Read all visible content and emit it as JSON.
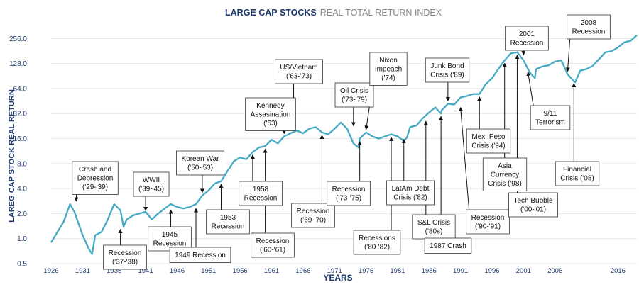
{
  "chart_data": {
    "type": "line",
    "title": "LARGE CAP STOCKS",
    "subtitle": "REAL TOTAL RETURN INDEX",
    "xlabel": "YEARS",
    "ylabel": "LAREG CAP STOCK REAL RETURN",
    "y_scale": "log2",
    "ylim": [
      0.5,
      360
    ],
    "xlim": [
      1926,
      2019
    ],
    "grid": true,
    "y_ticks": [
      "0.5",
      "1.0",
      "2.0",
      "4.0",
      "8.0",
      "16.0",
      "32.0",
      "64.0",
      "128.0",
      "256.0"
    ],
    "y_tick_values": [
      0.5,
      1,
      2,
      4,
      8,
      16,
      32,
      64,
      128,
      256
    ],
    "x_ticks": [
      "1926",
      "1931",
      "1936",
      "1941",
      "1946",
      "1951",
      "1956",
      "1961",
      "1966",
      "1971",
      "1976",
      "1981",
      "1986",
      "1991",
      "1996",
      "2001",
      "2006",
      "2016"
    ],
    "x_tick_values": [
      1926,
      1931,
      1936,
      1941,
      1946,
      1951,
      1956,
      1961,
      1966,
      1971,
      1976,
      1981,
      1986,
      1991,
      1996,
      2001,
      2006,
      2016
    ],
    "series": [
      {
        "color": "#45a9c4",
        "x": [
          1926,
          1927,
          1928,
          1929,
          1929.7,
          1930,
          1931,
          1932,
          1932.5,
          1933,
          1934,
          1935,
          1936,
          1937,
          1937.5,
          1938,
          1939,
          1940,
          1941,
          1942,
          1943,
          1944,
          1945,
          1946,
          1947,
          1948,
          1949,
          1950,
          1951,
          1952,
          1953,
          1954,
          1955,
          1956,
          1957,
          1958,
          1959,
          1960,
          1961,
          1962,
          1963,
          1964,
          1965,
          1966,
          1967,
          1968,
          1969,
          1970,
          1971,
          1972,
          1973,
          1974,
          1974.8,
          1975,
          1976,
          1977,
          1978,
          1979,
          1980,
          1981,
          1982,
          1982.5,
          1983,
          1984,
          1985,
          1986,
          1987,
          1987.9,
          1988,
          1989,
          1990,
          1991,
          1992,
          1993,
          1994,
          1995,
          1996,
          1997,
          1998,
          1999,
          2000,
          2001,
          2002,
          2002.8,
          2003,
          2004,
          2005,
          2006,
          2007,
          2008,
          2009,
          2009.2,
          2010,
          2011,
          2012,
          2013,
          2014,
          2015,
          2016,
          2017,
          2018,
          2019
        ],
        "values": [
          0.9,
          1.2,
          1.6,
          2.6,
          2.1,
          1.8,
          1.1,
          0.75,
          0.65,
          1.1,
          1.2,
          1.7,
          2.6,
          2.2,
          1.4,
          1.7,
          1.9,
          2.0,
          2.1,
          1.7,
          2.0,
          2.3,
          2.6,
          2.4,
          2.3,
          2.4,
          2.6,
          3.3,
          3.8,
          4.6,
          4.9,
          6.5,
          8.5,
          9.5,
          9.0,
          11.0,
          12.5,
          13.0,
          15.5,
          14.0,
          17.0,
          18.5,
          20.0,
          18.5,
          21.0,
          22.0,
          19.0,
          18.0,
          21.0,
          25.0,
          21.0,
          14.0,
          12.5,
          16.0,
          19.0,
          17.0,
          16.0,
          17.0,
          18.0,
          17.0,
          15.0,
          16.5,
          22.0,
          23.0,
          28.0,
          33.0,
          38.0,
          32.0,
          35.0,
          42.0,
          41.0,
          50.0,
          52.0,
          55.0,
          55.0,
          72.0,
          85.0,
          110.0,
          140.0,
          170.0,
          175.0,
          140.0,
          100.0,
          85.0,
          110.0,
          118.0,
          122.0,
          135.0,
          140.0,
          95.0,
          78.0,
          76.0,
          105.0,
          110.0,
          120.0,
          145.0,
          175.0,
          180.0,
          200.0,
          230.0,
          240.0,
          280.0
        ]
      }
    ],
    "annotations": [
      {
        "lines": [
          "Crash and",
          "Depression",
          "('29-'39)"
        ],
        "x": 1930.0,
        "y": 2.6
      },
      {
        "lines": [
          "WWII",
          "('39-'45)"
        ],
        "x": 1941.0,
        "y": 2.0
      },
      {
        "lines": [
          "Recession",
          "('37-'38)"
        ],
        "x": 1937.0,
        "y": 1.4
      },
      {
        "lines": [
          "1945",
          "Recession"
        ],
        "x": 1945.0,
        "y": 2.4
      },
      {
        "lines": [
          "1949 Recession"
        ],
        "x": 1949.0,
        "y": 2.5
      },
      {
        "lines": [
          "Korean War",
          "('50-'53)"
        ],
        "x": 1950.0,
        "y": 3.3
      },
      {
        "lines": [
          "1953",
          "Recession"
        ],
        "x": 1953.0,
        "y": 4.9
      },
      {
        "lines": [
          "1958",
          "Recession"
        ],
        "x": 1958.0,
        "y": 11.0
      },
      {
        "lines": [
          "Recession",
          "('60-'61)"
        ],
        "x": 1960.0,
        "y": 13.0
      },
      {
        "lines": [
          "Kennedy",
          "Assasination",
          "('63)"
        ],
        "x": 1963.0,
        "y": 17.0
      },
      {
        "lines": [
          "US/Vietnam",
          "('63-'73)"
        ],
        "x": 1964.5,
        "y": 20.0
      },
      {
        "lines": [
          "Recession",
          "('69-'70)"
        ],
        "x": 1969.0,
        "y": 19.0
      },
      {
        "lines": [
          "Oil Crisis",
          "('73-'79)"
        ],
        "x": 1974.0,
        "y": 21.0
      },
      {
        "lines": [
          "Nixon",
          "Impeach",
          "('74)"
        ],
        "x": 1976.0,
        "y": 19.0
      },
      {
        "lines": [
          "Recession",
          "('73-'75)"
        ],
        "x": 1975.0,
        "y": 16.0
      },
      {
        "lines": [
          "Recessions",
          "('80-'82)"
        ],
        "x": 1980.0,
        "y": 18.0
      },
      {
        "lines": [
          "LatAm Debt",
          "Crisis ('82)"
        ],
        "x": 1982.0,
        "y": 17.0
      },
      {
        "lines": [
          "S&L Crisis",
          "('80s)"
        ],
        "x": 1985.5,
        "y": 28.0
      },
      {
        "lines": [
          "1987 Crash"
        ],
        "x": 1987.9,
        "y": 32.0
      },
      {
        "lines": [
          "Junk Bond",
          "Crisis ('89)"
        ],
        "x": 1989.0,
        "y": 42.0
      },
      {
        "lines": [
          "Recession",
          "('90-'91)"
        ],
        "x": 1991.0,
        "y": 41.0
      },
      {
        "lines": [
          "Mex. Peso",
          "Crisis ('94)"
        ],
        "x": 1994.0,
        "y": 55.0
      },
      {
        "lines": [
          "Asia",
          "Currency",
          "Crisis ('98)"
        ],
        "x": 1998.0,
        "y": 140.0
      },
      {
        "lines": [
          "Tech Bubble",
          "('00-'01)"
        ],
        "x": 2000.0,
        "y": 175.0
      },
      {
        "lines": [
          "2001",
          "Recession"
        ],
        "x": 2001.0,
        "y": 150.0
      },
      {
        "lines": [
          "9/11",
          "Terrorism"
        ],
        "x": 2001.7,
        "y": 110.0
      },
      {
        "lines": [
          "2008",
          "Recession"
        ],
        "x": 2008.0,
        "y": 95.0
      },
      {
        "lines": [
          "Financial",
          "Crisis ('08)"
        ],
        "x": 2009.0,
        "y": 80.0
      }
    ]
  }
}
